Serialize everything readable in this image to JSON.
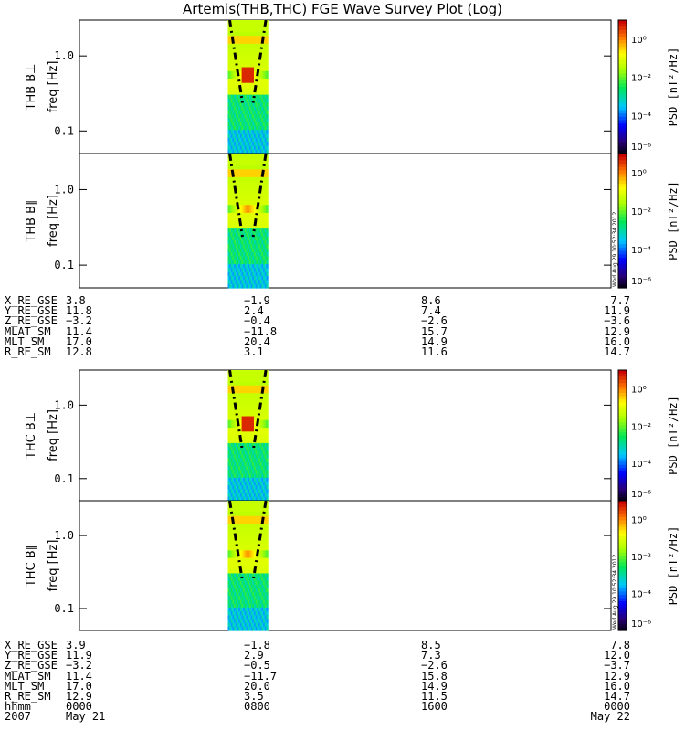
{
  "title": "Artemis(THB,THC) FGE Wave Survey Plot (Log)",
  "chart_data": {
    "type": "heatmap",
    "panels": [
      {
        "label": "THB B⊥",
        "ylabel": "freq [Hz]",
        "yticks": [
          "1.0",
          "0.1"
        ],
        "cbar_label": "PSD [nT²/Hz]"
      },
      {
        "label": "THB B∥",
        "ylabel": "freq [Hz]",
        "yticks": [
          "1.0",
          "0.1"
        ],
        "cbar_label": "PSD [nT²/Hz]"
      },
      {
        "label": "THC B⊥",
        "ylabel": "freq [Hz]",
        "yticks": [
          "1.0",
          "0.1"
        ],
        "cbar_label": "PSD [nT²/Hz]"
      },
      {
        "label": "THC B∥",
        "ylabel": "freq [Hz]",
        "yticks": [
          "1.0",
          "0.1"
        ],
        "cbar_label": "PSD [nT²/Hz]"
      }
    ],
    "colorbar_ticks": [
      "10⁰",
      "10⁻²",
      "10⁻⁴",
      "10⁻⁶"
    ],
    "x_time_hours": [
      0,
      8,
      16,
      24
    ],
    "data_interval_hours": [
      6.7,
      8.5
    ],
    "yscale": "log",
    "ylim_hz": [
      0.05,
      3.0
    ],
    "cbar_scale": "log",
    "cbar_range": [
      1e-06,
      10.0
    ],
    "stamp": "Wed Aug 29 10:52:34 2012"
  },
  "orbit_blocks": [
    {
      "rows": [
        {
          "label": "X_RE_GSE",
          "values": [
            "3.8",
            "−1.9",
            "8.6",
            "7.7"
          ]
        },
        {
          "label": "Y_RE_GSE",
          "values": [
            "11.8",
            "2.4",
            "7.4",
            "11.9"
          ]
        },
        {
          "label": "Z_RE_GSE",
          "values": [
            "−3.2",
            "−0.4",
            "−2.6",
            "−3.6"
          ]
        },
        {
          "label": "MLAT_SM",
          "values": [
            "11.4",
            "−11.8",
            "15.7",
            "12.9"
          ]
        },
        {
          "label": "MLT_SM",
          "values": [
            "17.0",
            "20.4",
            "14.9",
            "16.0"
          ]
        },
        {
          "label": "R_RE_SM",
          "values": [
            "12.8",
            "3.1",
            "11.6",
            "14.7"
          ]
        }
      ]
    },
    {
      "rows": [
        {
          "label": "X_RE_GSE",
          "values": [
            "3.9",
            "−1.8",
            "8.5",
            "7.8"
          ]
        },
        {
          "label": "Y_RE_GSE",
          "values": [
            "11.9",
            "2.9",
            "7.3",
            "12.0"
          ]
        },
        {
          "label": "Z_RE_GSE",
          "values": [
            "−3.2",
            "−0.5",
            "−2.6",
            "−3.7"
          ]
        },
        {
          "label": "MLAT_SM",
          "values": [
            "11.4",
            "−11.7",
            "15.8",
            "12.9"
          ]
        },
        {
          "label": "MLT_SM",
          "values": [
            "17.0",
            "20.0",
            "14.9",
            "16.0"
          ]
        },
        {
          "label": "R_RE_SM",
          "values": [
            "12.9",
            "3.5",
            "11.5",
            "14.7"
          ]
        },
        {
          "label": "hhmm",
          "values": [
            "0000",
            "0800",
            "1600",
            "0000"
          ]
        }
      ]
    }
  ],
  "date_row": {
    "label": "2007",
    "values": [
      "May 21",
      "",
      "",
      "May 22"
    ]
  }
}
